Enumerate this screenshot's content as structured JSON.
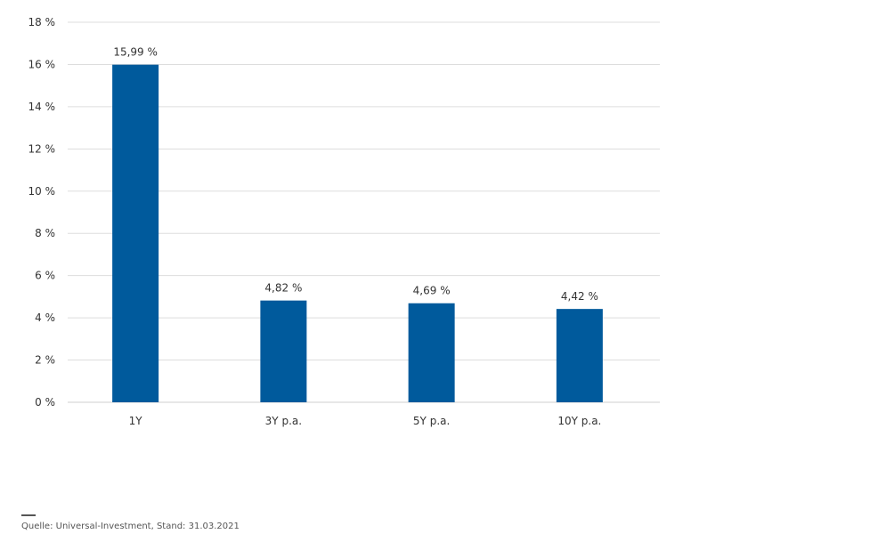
{
  "chart_data": {
    "type": "bar",
    "categories": [
      "1Y",
      "3Y p.a.",
      "5Y p.a.",
      "10Y p.a."
    ],
    "values": [
      15.99,
      4.82,
      4.69,
      4.42
    ],
    "value_labels": [
      "15,99 %",
      "4,82 %",
      "4,69 %",
      "4,42 %"
    ],
    "ylim": [
      0,
      18
    ],
    "y_ticks": [
      0,
      2,
      4,
      6,
      8,
      10,
      12,
      14,
      16,
      18
    ],
    "y_tick_labels": [
      "0 %",
      "2 %",
      "4 %",
      "6 %",
      "8 %",
      "10 %",
      "12 %",
      "14 %",
      "16 %",
      "18 %"
    ],
    "bar_color": "#005a9c",
    "grid": true,
    "title": "",
    "xlabel": "",
    "ylabel": ""
  },
  "footer": {
    "source": "Quelle: Universal-Investment, Stand: 31.03.2021"
  }
}
